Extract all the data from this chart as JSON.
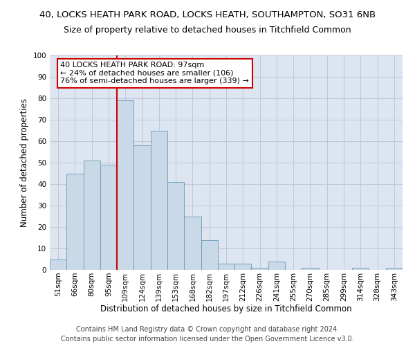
{
  "title_line1": "40, LOCKS HEATH PARK ROAD, LOCKS HEATH, SOUTHAMPTON, SO31 6NB",
  "title_line2": "Size of property relative to detached houses in Titchfield Common",
  "xlabel": "Distribution of detached houses by size in Titchfield Common",
  "ylabel": "Number of detached properties",
  "categories": [
    "51sqm",
    "66sqm",
    "80sqm",
    "95sqm",
    "109sqm",
    "124sqm",
    "139sqm",
    "153sqm",
    "168sqm",
    "182sqm",
    "197sqm",
    "212sqm",
    "226sqm",
    "241sqm",
    "255sqm",
    "270sqm",
    "285sqm",
    "299sqm",
    "314sqm",
    "328sqm",
    "343sqm"
  ],
  "values": [
    5,
    45,
    51,
    49,
    79,
    58,
    65,
    41,
    25,
    14,
    3,
    3,
    1,
    4,
    0,
    1,
    0,
    0,
    1,
    0,
    1
  ],
  "bar_color": "#c9d9e8",
  "bar_edge_color": "#6699bb",
  "vline_x": 3.5,
  "vline_color": "#cc0000",
  "annotation_text": "40 LOCKS HEATH PARK ROAD: 97sqm\n← 24% of detached houses are smaller (106)\n76% of semi-detached houses are larger (339) →",
  "annotation_box_color": "#ffffff",
  "annotation_box_edge": "#cc0000",
  "grid_color": "#c0c8d8",
  "background_color": "#dde5f0",
  "footer_line1": "Contains HM Land Registry data © Crown copyright and database right 2024.",
  "footer_line2": "Contains public sector information licensed under the Open Government Licence v3.0.",
  "ylim": [
    0,
    100
  ],
  "title_fontsize": 9.5,
  "subtitle_fontsize": 9,
  "axis_label_fontsize": 8.5,
  "tick_fontsize": 7.5,
  "footer_fontsize": 7,
  "annotation_fontsize": 8
}
